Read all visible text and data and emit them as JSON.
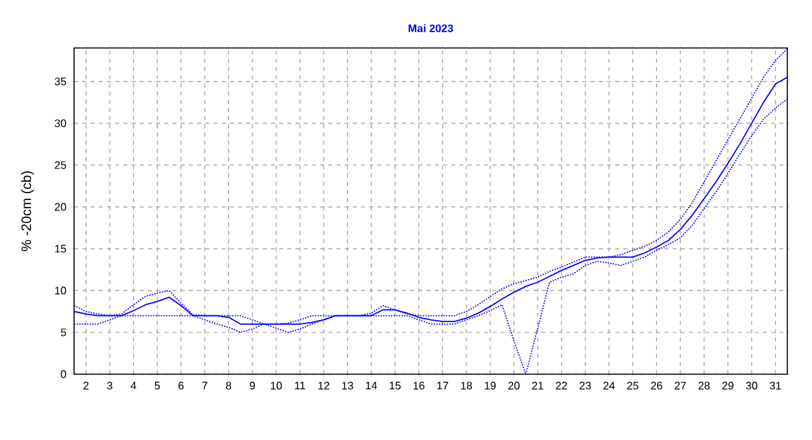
{
  "chart_data": {
    "type": "line",
    "title": "Mai 2023",
    "ylabel": "% -20cm (cb)",
    "x": [
      1.5,
      2,
      2.5,
      3,
      3.5,
      4,
      4.5,
      5,
      5.5,
      6,
      6.5,
      7,
      7.5,
      8,
      8.5,
      9,
      9.5,
      10,
      10.5,
      11,
      11.5,
      12,
      12.5,
      13,
      13.5,
      14,
      14.5,
      15,
      15.5,
      16,
      16.5,
      17,
      17.5,
      18,
      18.5,
      19,
      19.5,
      20,
      20.5,
      21,
      21.5,
      22,
      22.5,
      23,
      23.5,
      24,
      24.5,
      25,
      25.5,
      26,
      26.5,
      27,
      27.5,
      28,
      28.5,
      29,
      29.5,
      30,
      30.5,
      31,
      31.5
    ],
    "series": [
      {
        "color": "#0000ff",
        "line_style": "solid",
        "values": [
          7.5,
          7.2,
          7,
          7,
          7,
          7.6,
          8.3,
          8.7,
          9.2,
          8.2,
          7,
          7,
          7,
          6.8,
          6,
          6,
          6,
          6,
          6,
          6,
          6.2,
          6.5,
          7,
          7,
          7,
          7,
          7.7,
          7.7,
          7.3,
          6.8,
          6.5,
          6.3,
          6.3,
          6.7,
          7.3,
          8.1,
          9,
          9.8,
          10.5,
          11,
          11.7,
          12.4,
          13,
          13.6,
          13.9,
          14,
          14,
          14,
          14.5,
          15.2,
          16,
          17.3,
          19,
          21,
          23,
          25.2,
          27.5,
          30,
          32.5,
          34.7,
          35.5
        ]
      },
      {
        "color": "#0000ff",
        "line_style": "dotted",
        "values": [
          8.2,
          7.5,
          7.2,
          7,
          7.2,
          8.3,
          9.3,
          9.7,
          10,
          8.5,
          7.1,
          7,
          7,
          7,
          7,
          6.5,
          6,
          6,
          6.1,
          6.5,
          7,
          7,
          7,
          7,
          7,
          7.3,
          8.2,
          7.7,
          7.2,
          7,
          7,
          7,
          7,
          7.5,
          8.3,
          9.3,
          10.2,
          10.8,
          11.2,
          11.6,
          12.3,
          12.8,
          13.4,
          14,
          14,
          14,
          14.3,
          14.8,
          15.3,
          16,
          17,
          18.5,
          20.5,
          23,
          25.5,
          28,
          30.5,
          33,
          35.5,
          37.5,
          38.9
        ]
      },
      {
        "color": "#0000ff",
        "line_style": "dotted",
        "values": [
          6,
          6,
          6,
          6.5,
          7,
          7,
          7,
          7,
          7,
          7,
          7,
          6.5,
          6,
          5.6,
          5,
          5.4,
          6,
          5.5,
          5,
          5.4,
          6,
          6.5,
          7,
          7,
          7,
          7,
          7,
          7,
          7,
          6.5,
          6,
          6,
          6,
          6.5,
          7,
          7.6,
          8.3,
          4,
          0,
          5.5,
          11,
          11.6,
          12,
          13,
          13.5,
          13.3,
          13,
          13.5,
          14,
          14.8,
          15.5,
          16.3,
          17.8,
          19.8,
          21.8,
          24,
          26.3,
          28.5,
          30.5,
          31.8,
          32.9
        ]
      }
    ],
    "xlim": [
      1.5,
      31.5
    ],
    "ylim": [
      0,
      39
    ],
    "xticks": [
      2,
      3,
      4,
      5,
      6,
      7,
      8,
      9,
      10,
      11,
      12,
      13,
      14,
      15,
      16,
      17,
      18,
      19,
      20,
      21,
      22,
      23,
      24,
      25,
      26,
      27,
      28,
      29,
      30,
      31
    ],
    "yticks": [
      0,
      5,
      10,
      15,
      20,
      25,
      30,
      35
    ],
    "grid": true,
    "marker": "none"
  }
}
